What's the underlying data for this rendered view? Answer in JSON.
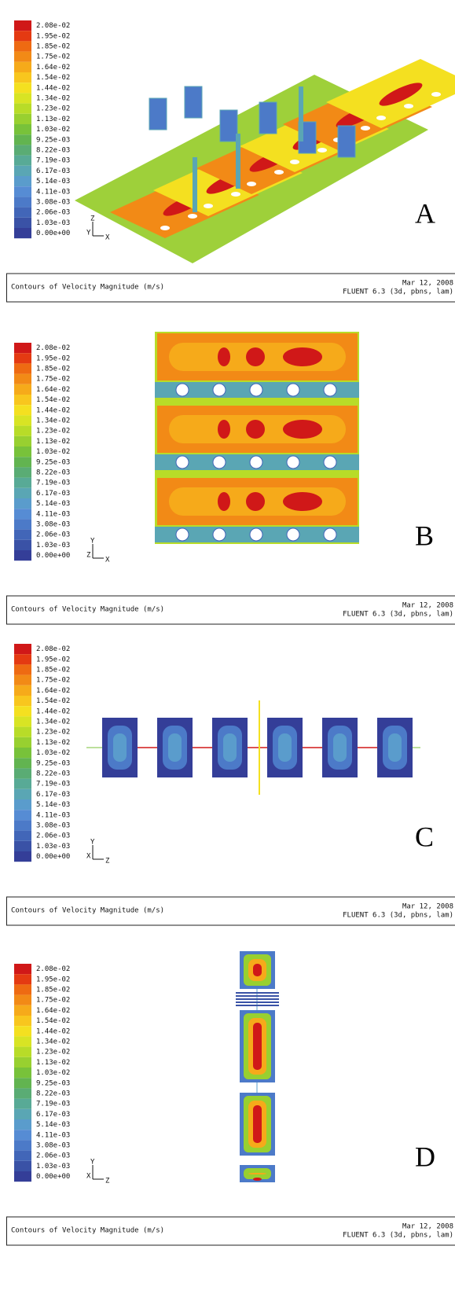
{
  "panels": [
    {
      "label": "A",
      "axes": [
        "Z",
        "Y",
        "X"
      ]
    },
    {
      "label": "B",
      "axes": [
        "Y",
        "Z",
        "X"
      ]
    },
    {
      "label": "C",
      "axes": [
        "Y",
        "X",
        "Z"
      ]
    },
    {
      "label": "D",
      "axes": [
        "Y",
        "X",
        "Z"
      ]
    }
  ],
  "colorbar": [
    "2.08e-02",
    "1.95e-02",
    "1.85e-02",
    "1.75e-02",
    "1.64e-02",
    "1.54e-02",
    "1.44e-02",
    "1.34e-02",
    "1.23e-02",
    "1.13e-02",
    "1.03e-02",
    "9.25e-03",
    "8.22e-03",
    "7.19e-03",
    "6.17e-03",
    "5.14e-03",
    "4.11e-03",
    "3.08e-03",
    "2.06e-03",
    "1.03e-03",
    "0.00e+00"
  ],
  "footer": {
    "title": "Contours of Velocity Magnitude (m/s)",
    "date": "Mar 12, 2008",
    "software": "FLUENT 6.3 (3d, pbns, lam)"
  }
}
